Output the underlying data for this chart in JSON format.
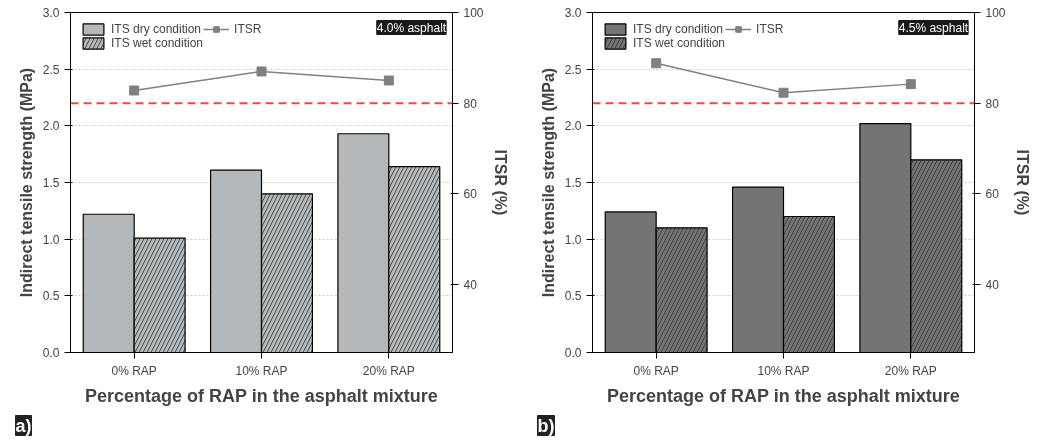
{
  "chart_data": [
    {
      "type": "bar",
      "categories": [
        "0% RAP",
        "10% RAP",
        "20% RAP"
      ],
      "xlabel": "Percentage of RAP in the asphalt mixture",
      "ylabel": "Indirect tensile strength (MPa)",
      "y2label": "ITSR (%)",
      "ylim": [
        0,
        3
      ],
      "yticks": [
        {
          "value": 0,
          "label": "0.0"
        },
        0.5,
        {
          "value": 1,
          "label": "1.0"
        },
        1.5,
        {
          "value": 2,
          "label": "2.0"
        },
        2.5,
        {
          "value": 3,
          "label": "3.0"
        }
      ],
      "y2lim": [
        25,
        100
      ],
      "y2ticks": [
        40,
        60,
        80,
        100
      ],
      "grid": "y",
      "legend": "top left",
      "annotations": [
        "a)",
        "4.0% asphalt"
      ],
      "ref_lines": [
        {
          "axis": "y2",
          "value": 80,
          "label": null,
          "color": "#f04a3a",
          "line_style": "dashed"
        }
      ],
      "series": [
        {
          "name": "ITS dry condition",
          "color": "#b4b8ba",
          "values": [
            1.22,
            1.61,
            1.93
          ]
        },
        {
          "name": "ITS wet condition",
          "color": "#b4b8ba",
          "values": [
            1.01,
            1.4,
            1.64
          ]
        },
        {
          "name": "ITSR",
          "type": "line",
          "axis": "y2",
          "marker": "square",
          "color": "#808080",
          "values": [
            82.8,
            87.0,
            85.0
          ]
        }
      ]
    },
    {
      "type": "bar",
      "categories": [
        "0% RAP",
        "10% RAP",
        "20% RAP"
      ],
      "xlabel": "Percentage of RAP in the asphalt mixture",
      "ylabel": "Indirect tensile strength (MPa)",
      "y2label": "ITSR (%)",
      "ylim": [
        0,
        3
      ],
      "yticks": [
        {
          "value": 0,
          "label": "0.0"
        },
        0.5,
        {
          "value": 1,
          "label": "1.0"
        },
        1.5,
        {
          "value": 2,
          "label": "2.0"
        },
        2.5,
        {
          "value": 3,
          "label": "3.0"
        }
      ],
      "y2lim": [
        25,
        100
      ],
      "y2ticks": [
        40,
        60,
        80,
        100
      ],
      "grid": "y",
      "legend": "top left",
      "annotations": [
        "b)",
        "4.5% asphalt"
      ],
      "ref_lines": [
        {
          "axis": "y2",
          "value": 80,
          "label": null,
          "color": "#f04a3a",
          "line_style": "dashed"
        }
      ],
      "series": [
        {
          "name": "ITS dry condition",
          "color": "#737475",
          "values": [
            1.24,
            1.46,
            2.02
          ]
        },
        {
          "name": "ITS wet condition",
          "color": "#737475",
          "values": [
            1.1,
            1.2,
            1.7
          ]
        },
        {
          "name": "ITSR",
          "type": "line",
          "axis": "y2",
          "marker": "square",
          "color": "#808080",
          "values": [
            88.8,
            82.3,
            84.2
          ]
        }
      ]
    }
  ]
}
